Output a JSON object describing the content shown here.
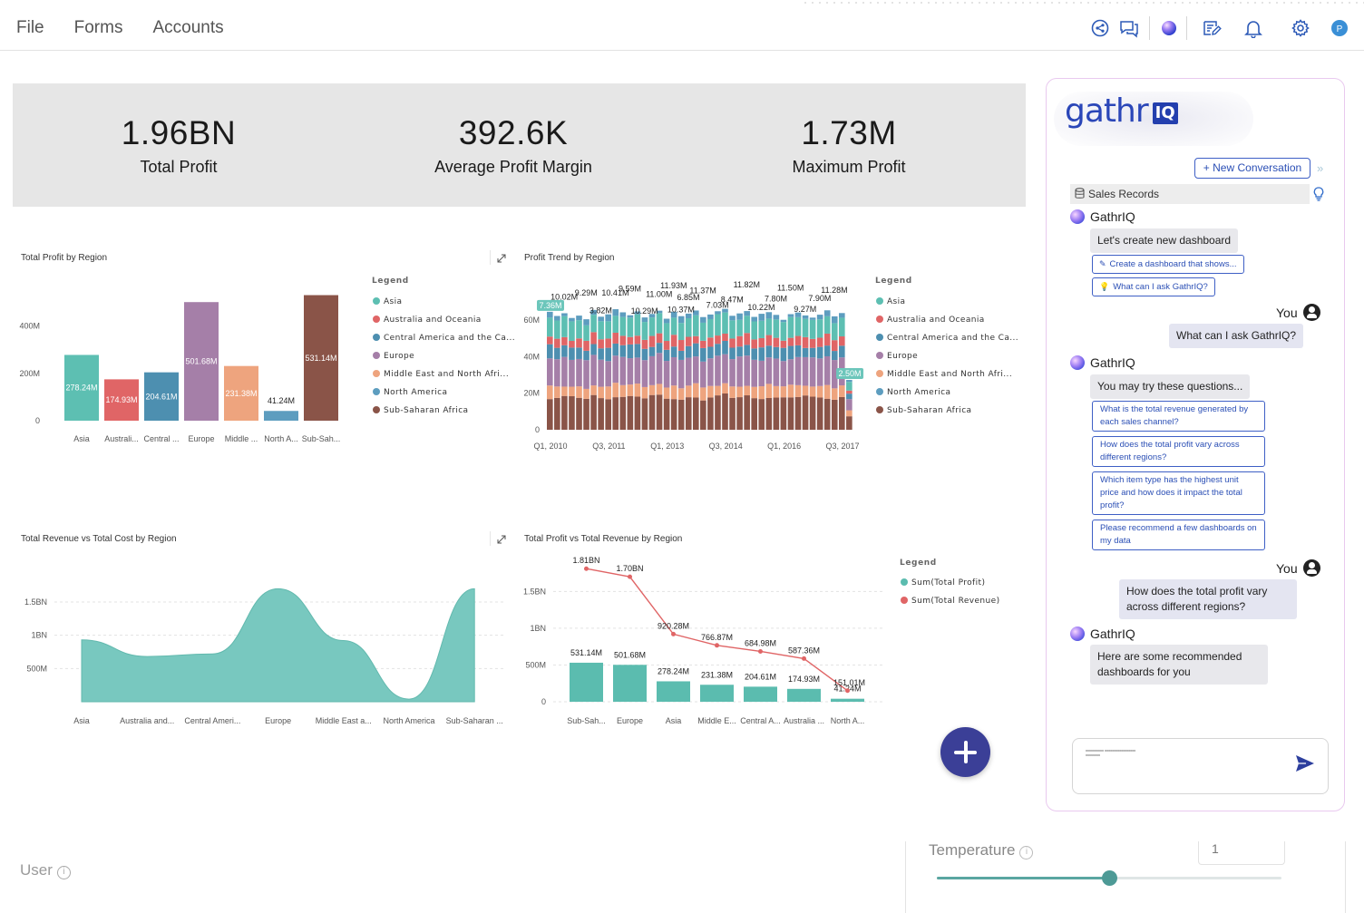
{
  "menu": {
    "items": [
      "File",
      "Forms",
      "Accounts"
    ]
  },
  "toolbar": {
    "icons": [
      "share-icon",
      "comments-icon",
      "ai-orb-icon",
      "edit-notes-icon",
      "bell-icon",
      "gear-icon",
      "profile-avatar"
    ],
    "avatar_initial": "P",
    "accent": "#2d6fcf"
  },
  "kpis": [
    {
      "value": "1.96BN",
      "label": "Total Profit"
    },
    {
      "value": "392.6K",
      "label": "Average Profit Margin"
    },
    {
      "value": "1.73M",
      "label": "Maximum Profit"
    }
  ],
  "region_colors": {
    "Asia": "#5dbfb2",
    "Australia and Oceania": "#e06566",
    "Central America and the Caribbean": "#4d8fb0",
    "Europe": "#a57fa8",
    "Middle East and North Africa": "#eea47e",
    "North America": "#5d9dbf",
    "Sub-Saharan Africa": "#8a5448"
  },
  "chart_data": [
    {
      "type": "bar",
      "title": "Total Profit by Region",
      "legend_title": "Legend",
      "legend": [
        "Asia",
        "Australia and Oceania",
        "Central America and the Ca...",
        "Europe",
        "Middle East and North Afri...",
        "North America",
        "Sub-Saharan Africa"
      ],
      "categories": [
        "Asia",
        "Australi...",
        "Central ...",
        "Europe",
        "Middle ...",
        "North A...",
        "Sub-Sah..."
      ],
      "values": [
        278.24,
        174.93,
        204.61,
        501.68,
        231.38,
        41.24,
        531.14
      ],
      "data_labels": [
        "278.24M",
        "174.93M",
        "204.61M",
        "501.68M",
        "231.38M",
        "41.24M",
        "531.14M"
      ],
      "y_ticks": [
        "0",
        "200M",
        "400M"
      ],
      "ylim": [
        0,
        560
      ]
    },
    {
      "type": "bar",
      "stacked": true,
      "title": "Profit Trend by Region",
      "legend_title": "Legend",
      "legend": [
        "Asia",
        "Australia and Oceania",
        "Central America and the Ca...",
        "Europe",
        "Middle East and North Afri...",
        "North America",
        "Sub-Saharan Africa"
      ],
      "x_ticks": [
        "Q1, 2010",
        "Q3, 2011",
        "Q1, 2013",
        "Q3, 2014",
        "Q1, 2016",
        "Q3, 2017"
      ],
      "y_ticks": [
        "0",
        "20M",
        "40M",
        "60M"
      ],
      "ylim": [
        0,
        70
      ],
      "totals": [
        64.6,
        62.3,
        63.8,
        61.2,
        62.5,
        60.5,
        65.6,
        61.9,
        63.2,
        66.0,
        64.3,
        62.7,
        64.8,
        61.5,
        63.4,
        65.2,
        60.8,
        64.6,
        62.2,
        63.6,
        65.3,
        61.7,
        63.1,
        64.9,
        66.2,
        62.4,
        63.7,
        65.0,
        61.8,
        63.5,
        64.4,
        62.9,
        60.2,
        63.3,
        64.2,
        62.6,
        61.4,
        63.0,
        65.4,
        62.1,
        63.9,
        27.3
      ],
      "top_labels": [
        "7.36M",
        "10.02M",
        "9.29M",
        "3.82M",
        "10.41M",
        "9.59M",
        "10.29M",
        "11.00M",
        "11.93M",
        "10.37M",
        "6.85M",
        "11.37M",
        "7.03M",
        "8.47M",
        "11.82M",
        "10.22M",
        "7.80M",
        "11.50M",
        "9.27M",
        "7.90M",
        "11.28M",
        "2.50M"
      ]
    },
    {
      "type": "area",
      "title": "Total Revenue vs Total Cost by Region",
      "categories": [
        "Asia",
        "Australia and...",
        "Central Ameri...",
        "Europe",
        "Middle East a...",
        "North America",
        "Sub-Saharan ..."
      ],
      "values": [
        0.93,
        0.68,
        0.72,
        1.7,
        0.92,
        0.04,
        1.7
      ],
      "y_ticks": [
        "500M",
        "1BN",
        "1.5BN"
      ],
      "ylim": [
        0,
        1.8
      ]
    },
    {
      "type": "bar",
      "title": "Total Profit vs Total Revenue by Region",
      "legend_title": "Legend",
      "categories": [
        "Sub-Sah...",
        "Europe",
        "Asia",
        "Middle E...",
        "Central A...",
        "Australia ...",
        "North A..."
      ],
      "series": [
        {
          "name": "Sum(Total Profit)",
          "type": "bar",
          "values": [
            0.531,
            0.502,
            0.278,
            0.231,
            0.205,
            0.175,
            0.041
          ],
          "labels": [
            "531.14M",
            "501.68M",
            "278.24M",
            "231.38M",
            "204.61M",
            "174.93M",
            "41.24M"
          ]
        },
        {
          "name": "Sum(Total Revenue)",
          "type": "line",
          "values": [
            1.81,
            1.7,
            0.92,
            0.767,
            0.685,
            0.587,
            0.151
          ],
          "labels": [
            "1.81BN",
            "1.70BN",
            "920.28M",
            "766.87M",
            "684.98M",
            "587.36M",
            "151.01M"
          ]
        }
      ],
      "y_ticks": [
        "0",
        "500M",
        "1BN",
        "1.5BN"
      ],
      "ylim": [
        0,
        1.85
      ]
    }
  ],
  "chat": {
    "logo_text": "gathr",
    "logo_badge": "IQ",
    "new_conversation": "+ New Conversation",
    "dataset": "Sales Records",
    "assistant_name": "GathrIQ",
    "user_name": "You",
    "messages": [
      {
        "text": "Let's create new dashboard"
      },
      {
        "text": "What can I ask GathrIQ?"
      },
      {
        "text": "You may try these questions..."
      },
      {
        "text": "How does the total profit vary across different regions?"
      },
      {
        "text": "Here are some recommended dashboards for you"
      }
    ],
    "chips": [
      "Create a dashboard that shows...",
      "What can I ask GathrIQ?"
    ],
    "suggestions": [
      "What is the total revenue generated by each sales channel?",
      "How does the total profit vary across different regions?",
      "Which item type has the highest unit price and how does it impact the total profit?",
      "Please recommend a few dashboards on my data"
    ],
    "input_preview": "xxxxxxxxxx xxxxxxxxxxxxxxxxx xxxxxxxx"
  },
  "bottom": {
    "user_label": "User",
    "temperature_label": "Temperature",
    "temperature_value": "1",
    "temperature_fraction": 0.5
  }
}
